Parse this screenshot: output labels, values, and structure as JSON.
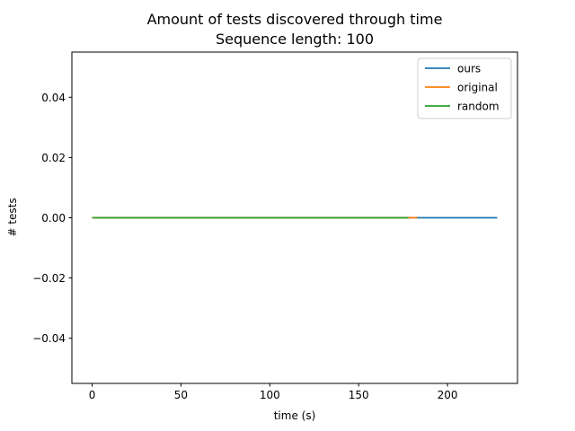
{
  "chart_data": {
    "type": "line",
    "title": [
      "Amount of tests discovered through time",
      "Sequence length: 100"
    ],
    "xlabel": "time (s)",
    "ylabel": "# tests",
    "xlim": [
      -11.4,
      239.4
    ],
    "ylim": [
      -0.055,
      0.055
    ],
    "xticks": [
      0,
      50,
      100,
      150,
      200
    ],
    "xtick_labels": [
      "0",
      "50",
      "100",
      "150",
      "200"
    ],
    "yticks": [
      -0.04,
      -0.02,
      0.0,
      0.02,
      0.04
    ],
    "ytick_labels": [
      "−0.04",
      "−0.02",
      "0.00",
      "0.02",
      "0.04"
    ],
    "grid": false,
    "legend_position": "top-right",
    "series": [
      {
        "name": "ours",
        "color": "#1f77b4",
        "x": [
          0,
          228
        ],
        "y": [
          0,
          0
        ]
      },
      {
        "name": "original",
        "color": "#ff7f0e",
        "x": [
          0,
          183
        ],
        "y": [
          0,
          0
        ]
      },
      {
        "name": "random",
        "color": "#2ca02c",
        "x": [
          0,
          178
        ],
        "y": [
          0,
          0
        ]
      }
    ]
  }
}
